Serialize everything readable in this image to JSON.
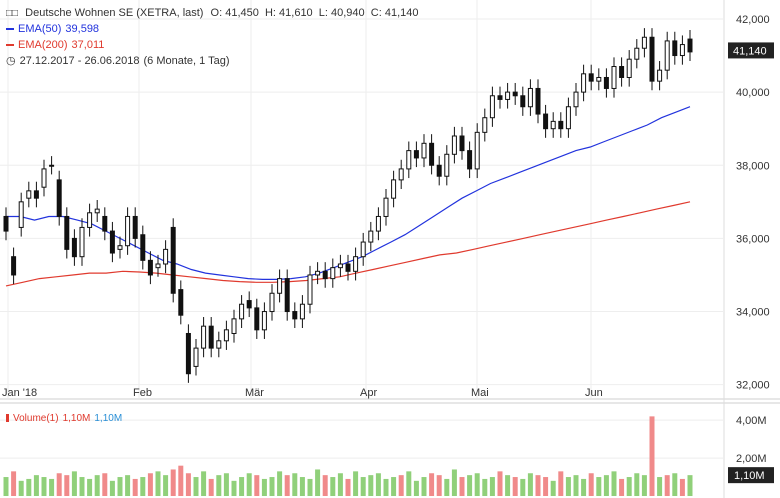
{
  "header": {
    "title": "Deutsche Wohnen SE (XETRA, last)",
    "ohlc": "O: 41,450  H: 41,610  L: 40,940  C: 41,140",
    "ema50_label": "EMA(50)",
    "ema50_value": "39,598",
    "ema200_label": "EMA(200)",
    "ema200_value": "37,011",
    "range": "27.12.2017 - 26.06.2018",
    "range_note": "(6 Monate, 1 Tag)",
    "last_price_tag": "41,140"
  },
  "volume_panel": {
    "label": "Volume(1)",
    "value1": "1,10M",
    "value2": "1,10M",
    "last_tag": "1,10M"
  },
  "colors": {
    "ema50": "#2233dd",
    "ema200": "#e03a2e",
    "candle": "#111111",
    "vol_up": "#90d07a",
    "vol_down": "#f08a8a",
    "vol_value2": "#2a8fd6"
  },
  "chart_data": [
    {
      "type": "candlestick",
      "title": "Deutsche Wohnen SE (XETRA, last)",
      "x_ticks": [
        "Jan '18",
        "Feb",
        "Mär",
        "Apr",
        "Mai",
        "Jun"
      ],
      "y_ticks": [
        "32,000",
        "34,000",
        "36,000",
        "38,000",
        "40,000",
        "42,000"
      ],
      "ylim": [
        31.8,
        42.3
      ],
      "grid": true,
      "close": [
        36.2,
        35.0,
        37.0,
        37.3,
        37.1,
        37.9,
        38.0,
        36.6,
        35.7,
        35.5,
        36.3,
        36.7,
        36.8,
        36.2,
        35.6,
        35.8,
        36.6,
        36.0,
        35.4,
        35.0,
        35.3,
        35.7,
        34.5,
        33.9,
        32.3,
        33.0,
        33.6,
        33.0,
        33.2,
        33.5,
        33.8,
        34.2,
        34.1,
        33.5,
        34.0,
        34.5,
        34.9,
        34.0,
        33.8,
        34.2,
        35.0,
        35.1,
        34.9,
        35.2,
        35.3,
        35.1,
        35.5,
        35.9,
        36.2,
        36.6,
        37.1,
        37.6,
        37.9,
        38.4,
        38.2,
        38.6,
        38.0,
        37.7,
        38.3,
        38.8,
        38.4,
        37.9,
        38.9,
        39.3,
        39.9,
        39.8,
        40.0,
        39.9,
        39.6,
        40.1,
        39.4,
        39.0,
        39.2,
        39.0,
        39.6,
        40.0,
        40.5,
        40.3,
        40.4,
        40.1,
        40.7,
        40.4,
        40.9,
        41.2,
        41.5,
        40.3,
        40.6,
        41.4,
        41.0,
        41.3,
        41.1
      ],
      "open": [
        36.6,
        35.5,
        36.3,
        37.1,
        37.3,
        37.4,
        38.0,
        37.6,
        36.6,
        36.0,
        35.5,
        36.3,
        36.7,
        36.6,
        36.2,
        35.7,
        35.8,
        36.6,
        36.1,
        35.4,
        35.2,
        35.3,
        36.3,
        34.6,
        33.4,
        32.5,
        33.0,
        33.6,
        33.0,
        33.2,
        33.4,
        33.8,
        34.3,
        34.1,
        33.5,
        34.0,
        34.5,
        34.9,
        34.0,
        33.8,
        34.2,
        35.0,
        35.1,
        34.9,
        35.2,
        35.3,
        35.1,
        35.5,
        35.9,
        36.2,
        36.6,
        37.1,
        37.6,
        37.9,
        38.4,
        38.2,
        38.6,
        38.0,
        37.7,
        38.3,
        38.8,
        38.4,
        37.9,
        38.9,
        39.3,
        39.9,
        39.8,
        40.0,
        39.9,
        39.6,
        40.1,
        39.4,
        39.0,
        39.2,
        39.0,
        39.6,
        40.0,
        40.5,
        40.3,
        40.4,
        40.1,
        40.7,
        40.4,
        40.9,
        41.2,
        41.5,
        40.3,
        40.6,
        41.4,
        41.0,
        41.45
      ],
      "ema50": [
        36.6,
        36.6,
        36.5,
        36.6,
        36.6,
        36.5,
        36.4,
        36.2,
        36.0,
        35.8,
        35.6,
        35.4,
        35.3,
        35.15,
        35.05,
        35.0,
        34.95,
        34.9,
        34.88,
        34.88,
        34.9,
        34.95,
        35.05,
        35.2,
        35.35,
        35.5,
        35.7,
        35.9,
        36.1,
        36.35,
        36.6,
        36.85,
        37.1,
        37.3,
        37.5,
        37.65,
        37.8,
        37.95,
        38.1,
        38.25,
        38.4,
        38.5,
        38.65,
        38.8,
        38.95,
        39.1,
        39.3,
        39.45,
        39.6
      ],
      "ema200": [
        34.7,
        34.8,
        34.9,
        34.95,
        35.0,
        35.05,
        35.05,
        35.1,
        35.08,
        35.05,
        35.0,
        34.95,
        34.9,
        34.85,
        34.82,
        34.8,
        34.8,
        34.82,
        34.85,
        34.9,
        34.95,
        35.05,
        35.15,
        35.25,
        35.35,
        35.45,
        35.55,
        35.6,
        35.7,
        35.8,
        35.9,
        36.0,
        36.1,
        36.2,
        36.3,
        36.4,
        36.5,
        36.6,
        36.7,
        36.8,
        36.9,
        37.0
      ],
      "series": [
        {
          "name": "EMA(50)",
          "last": 39.598
        },
        {
          "name": "EMA(200)",
          "last": 37.011
        }
      ]
    },
    {
      "type": "bar",
      "title": "Volume(1)",
      "y_ticks": [
        "2,00M",
        "4,00M"
      ],
      "ylim": [
        0,
        4.8
      ],
      "values": [
        1.0,
        1.3,
        0.8,
        0.9,
        1.1,
        1.0,
        0.9,
        1.2,
        1.1,
        1.3,
        1.0,
        0.9,
        1.1,
        1.2,
        0.8,
        1.0,
        1.1,
        0.9,
        1.0,
        1.2,
        1.3,
        1.1,
        1.4,
        1.6,
        1.2,
        1.0,
        1.3,
        0.9,
        1.1,
        1.2,
        0.8,
        1.0,
        1.2,
        1.1,
        0.9,
        1.0,
        1.3,
        1.1,
        1.2,
        1.0,
        0.9,
        1.4,
        1.1,
        1.0,
        1.2,
        0.9,
        1.3,
        1.0,
        1.1,
        1.2,
        0.9,
        1.0,
        1.1,
        1.3,
        0.8,
        1.0,
        1.2,
        1.1,
        0.9,
        1.4,
        1.0,
        1.1,
        1.2,
        0.9,
        1.0,
        1.3,
        1.1,
        1.0,
        0.9,
        1.2,
        1.1,
        1.0,
        0.8,
        1.3,
        1.0,
        1.1,
        0.9,
        1.2,
        1.0,
        1.1,
        1.3,
        0.9,
        1.0,
        1.2,
        1.1,
        4.2,
        1.0,
        1.1,
        1.2,
        0.9,
        1.1
      ],
      "down_days": [
        1,
        7,
        8,
        13,
        17,
        19,
        22,
        23,
        24,
        27,
        33,
        37,
        42,
        45,
        52,
        56,
        57,
        60,
        65,
        67,
        70,
        71,
        73,
        77,
        81,
        85,
        87,
        89
      ]
    }
  ]
}
